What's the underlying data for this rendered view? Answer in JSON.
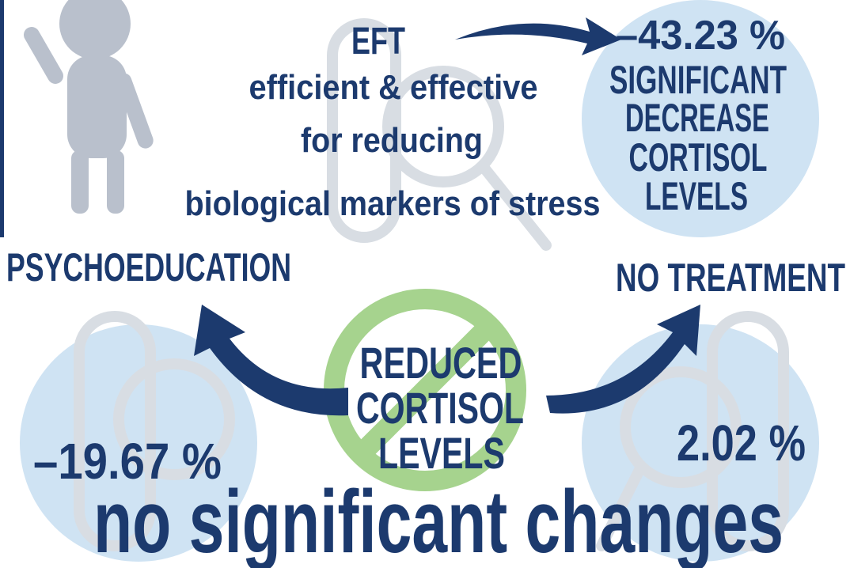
{
  "eft": {
    "title": "EFT",
    "description": [
      "efficient & effective",
      "for reducing",
      "biological markers of stress"
    ],
    "result": "–43.23 %",
    "result_note": [
      "SIGNIFICANT",
      "DECREASE",
      "CORTISOL",
      "LEVELS"
    ]
  },
  "psychoeducation": {
    "label": "PSYCHOEDUCATION",
    "result": "–19.67 %"
  },
  "no_treatment": {
    "label": "NO TREATMENT",
    "result": "2.02 %"
  },
  "center": [
    "REDUCED",
    "CORTISOL",
    "LEVELS"
  ],
  "footer": "no significant changes"
}
